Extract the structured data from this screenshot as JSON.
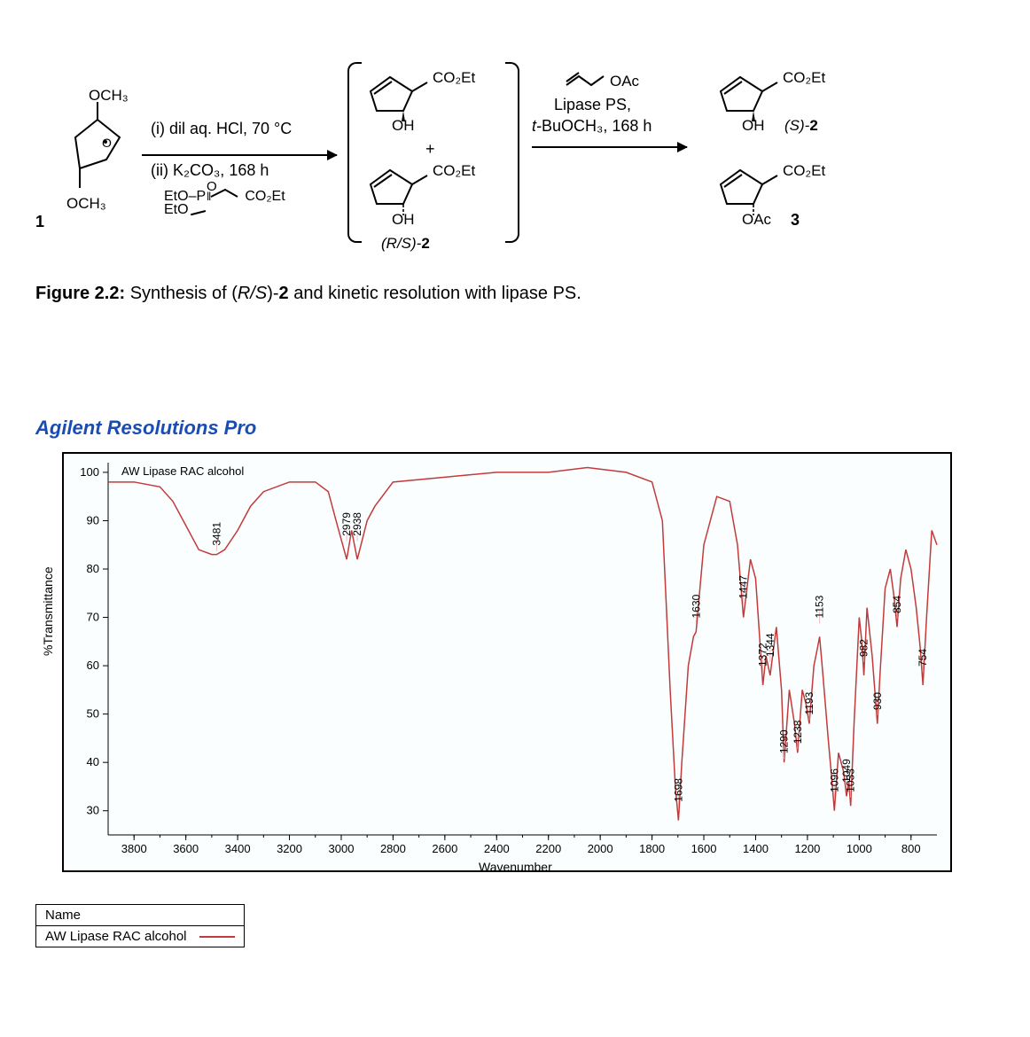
{
  "scheme": {
    "compound1": {
      "label": "1",
      "top_sub": "OCH₃",
      "bottom_sub": "OCH₃"
    },
    "reagents_step1": "(i) dil aq. HCl, 70 °C",
    "reagents_step2": "(ii) K₂CO₃, 168 h",
    "reagent_phosphonate_line1": "EtO–",
    "reagent_phosphonate_P": "P",
    "reagent_phosphonate_line2": "EtO",
    "reagent_phosphonate_side": "CO₂Et",
    "reagent_phosphonate_O": "O",
    "intermediate_top": {
      "sub": "CO₂Et",
      "oh": "OH"
    },
    "intermediate_bot": {
      "sub": "CO₂Et",
      "oh": "OH"
    },
    "intermediate_label_prefix": "(R/S)-",
    "intermediate_label_num": "2",
    "plus": "+",
    "lipase_line1": "OAc",
    "lipase_line2": "Lipase PS,",
    "lipase_line3_prefix": "t-",
    "lipase_line3": "BuOCH₃, 168 h",
    "vinyl_oac_ch": "",
    "product_top": {
      "sub": "CO₂Et",
      "oh": "OH",
      "label_prefix": "(S)-",
      "label_num": "2"
    },
    "product_bot": {
      "sub": "CO₂Et",
      "oac": "OAc",
      "label_num": "3"
    }
  },
  "caption": {
    "label": "Figure 2.2:",
    "text_a": " Synthesis of (",
    "text_rs": "R/S",
    "text_b": ")-",
    "text_bold2": "2",
    "text_c": " and kinetic resolution with lipase PS."
  },
  "agilent_title": "Agilent Resolutions Pro",
  "ir": {
    "sample_label": "AW Lipase RAC alcohol",
    "y_axis_label": "%Transmittance",
    "x_axis_label": "Wavenumber",
    "x_min": 700,
    "x_max": 3900,
    "y_min": 25,
    "y_max": 102,
    "x_ticks": [
      3800,
      3600,
      3400,
      3200,
      3000,
      2800,
      2600,
      2400,
      2200,
      2000,
      1800,
      1600,
      1400,
      1200,
      1000,
      800
    ],
    "y_ticks": [
      30,
      40,
      50,
      60,
      70,
      80,
      90,
      100
    ],
    "line_color": "#c23a3a",
    "peak_labels": [
      3481,
      2979,
      2938,
      1698,
      1630,
      1447,
      1372,
      1344,
      1290,
      1238,
      1193,
      1153,
      1096,
      1049,
      1033,
      982,
      930,
      854,
      754
    ],
    "peak_y": {
      "3481": 83,
      "2979": 85,
      "2938": 85,
      "1698": 30,
      "1630": 68,
      "1447": 72,
      "1372": 58,
      "1344": 60,
      "1290": 40,
      "1238": 42,
      "1193": 48,
      "1153": 68,
      "1096": 32,
      "1049": 34,
      "1033": 32,
      "982": 60,
      "930": 49,
      "854": 69,
      "754": 58
    },
    "curve": [
      [
        3900,
        98
      ],
      [
        3850,
        98
      ],
      [
        3800,
        98
      ],
      [
        3700,
        97
      ],
      [
        3650,
        94
      ],
      [
        3600,
        89
      ],
      [
        3550,
        84
      ],
      [
        3500,
        83
      ],
      [
        3481,
        83
      ],
      [
        3450,
        84
      ],
      [
        3400,
        88
      ],
      [
        3350,
        93
      ],
      [
        3300,
        96
      ],
      [
        3200,
        98
      ],
      [
        3100,
        98
      ],
      [
        3050,
        96
      ],
      [
        3020,
        90
      ],
      [
        2979,
        82
      ],
      [
        2960,
        88
      ],
      [
        2938,
        82
      ],
      [
        2900,
        90
      ],
      [
        2870,
        93
      ],
      [
        2800,
        98
      ],
      [
        2600,
        99
      ],
      [
        2400,
        100
      ],
      [
        2200,
        100
      ],
      [
        2050,
        101
      ],
      [
        1900,
        100
      ],
      [
        1800,
        98
      ],
      [
        1760,
        90
      ],
      [
        1730,
        55
      ],
      [
        1710,
        35
      ],
      [
        1698,
        28
      ],
      [
        1685,
        40
      ],
      [
        1660,
        60
      ],
      [
        1640,
        66
      ],
      [
        1630,
        67
      ],
      [
        1600,
        85
      ],
      [
        1550,
        95
      ],
      [
        1500,
        94
      ],
      [
        1470,
        85
      ],
      [
        1447,
        70
      ],
      [
        1420,
        82
      ],
      [
        1400,
        78
      ],
      [
        1372,
        56
      ],
      [
        1360,
        62
      ],
      [
        1344,
        58
      ],
      [
        1320,
        68
      ],
      [
        1300,
        55
      ],
      [
        1290,
        40
      ],
      [
        1270,
        55
      ],
      [
        1250,
        48
      ],
      [
        1238,
        42
      ],
      [
        1220,
        55
      ],
      [
        1205,
        52
      ],
      [
        1193,
        48
      ],
      [
        1175,
        60
      ],
      [
        1160,
        64
      ],
      [
        1153,
        66
      ],
      [
        1140,
        58
      ],
      [
        1120,
        45
      ],
      [
        1105,
        36
      ],
      [
        1096,
        30
      ],
      [
        1080,
        42
      ],
      [
        1060,
        38
      ],
      [
        1049,
        33
      ],
      [
        1040,
        36
      ],
      [
        1033,
        31
      ],
      [
        1020,
        48
      ],
      [
        1000,
        70
      ],
      [
        990,
        65
      ],
      [
        982,
        58
      ],
      [
        970,
        72
      ],
      [
        950,
        62
      ],
      [
        940,
        55
      ],
      [
        930,
        48
      ],
      [
        920,
        58
      ],
      [
        900,
        76
      ],
      [
        880,
        80
      ],
      [
        865,
        74
      ],
      [
        854,
        68
      ],
      [
        840,
        78
      ],
      [
        820,
        84
      ],
      [
        800,
        80
      ],
      [
        780,
        72
      ],
      [
        765,
        64
      ],
      [
        754,
        56
      ],
      [
        740,
        70
      ],
      [
        720,
        88
      ],
      [
        700,
        85
      ]
    ],
    "background_color": "#fafeff",
    "axis_color": "#000000",
    "text_color": "#000000"
  },
  "name_table": {
    "header": "Name",
    "row_label": "AW Lipase RAC alcohol",
    "swatch_color": "#c23a3a"
  }
}
